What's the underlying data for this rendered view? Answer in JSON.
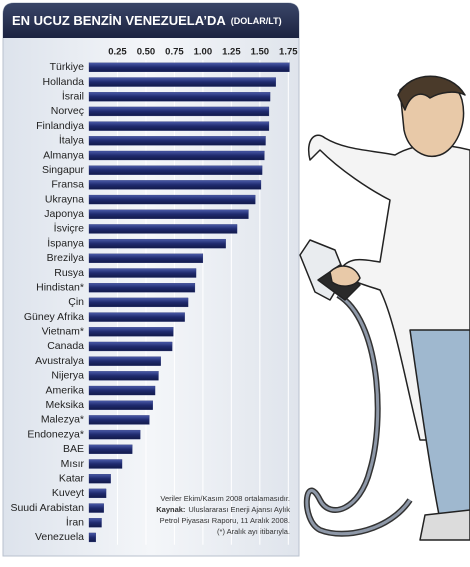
{
  "chart_data": {
    "type": "bar",
    "orientation": "horizontal",
    "title": "EN UCUZ BENZİN VENEZUELA’DA",
    "subtitle": "(DOLAR/LT)",
    "categories": [
      "Türkiye",
      "Hollanda",
      "İsrail",
      "Norveç",
      "Finlandiya",
      "İtalya",
      "Almanya",
      "Singapur",
      "Fransa",
      "Ukrayna",
      "Japonya",
      "İsviçre",
      "İspanya",
      "Brezilya",
      "Rusya",
      "Hindistan*",
      "Çin",
      "Güney Afrika",
      "Vietnam*",
      "Canada",
      "Avustralya",
      "Nijerya",
      "Amerika",
      "Meksika",
      "Malezya*",
      "Endonezya*",
      "BAE",
      "Mısır",
      "Katar",
      "Kuveyt",
      "Suudi Arabistan",
      "İran",
      "Venezuela"
    ],
    "values": [
      1.76,
      1.64,
      1.59,
      1.58,
      1.58,
      1.55,
      1.54,
      1.52,
      1.51,
      1.46,
      1.4,
      1.3,
      1.2,
      1.0,
      0.94,
      0.93,
      0.87,
      0.84,
      0.74,
      0.73,
      0.63,
      0.61,
      0.58,
      0.56,
      0.53,
      0.45,
      0.38,
      0.29,
      0.19,
      0.15,
      0.13,
      0.11,
      0.06
    ],
    "color": "#1f2a6e",
    "xlim": [
      0,
      1.8
    ],
    "xticks": [
      0.25,
      {
        "value": 0.5,
        "label": "0.50"
      },
      0.75,
      {
        "value": 1.0,
        "label": "1.00"
      },
      1.25,
      {
        "value": 1.5,
        "label": "1.50"
      },
      1.75
    ],
    "grid": true,
    "notes": [
      "Veriler Ekim/Kasım 2008 ortalamasıdır.",
      "Kaynak:",
      "Uluslararası Enerji Ajansı Aylık",
      "Petrol Piyasası Raporu, 11 Aralık 2008.",
      "(*) Aralık ayı itibarıyla."
    ]
  }
}
